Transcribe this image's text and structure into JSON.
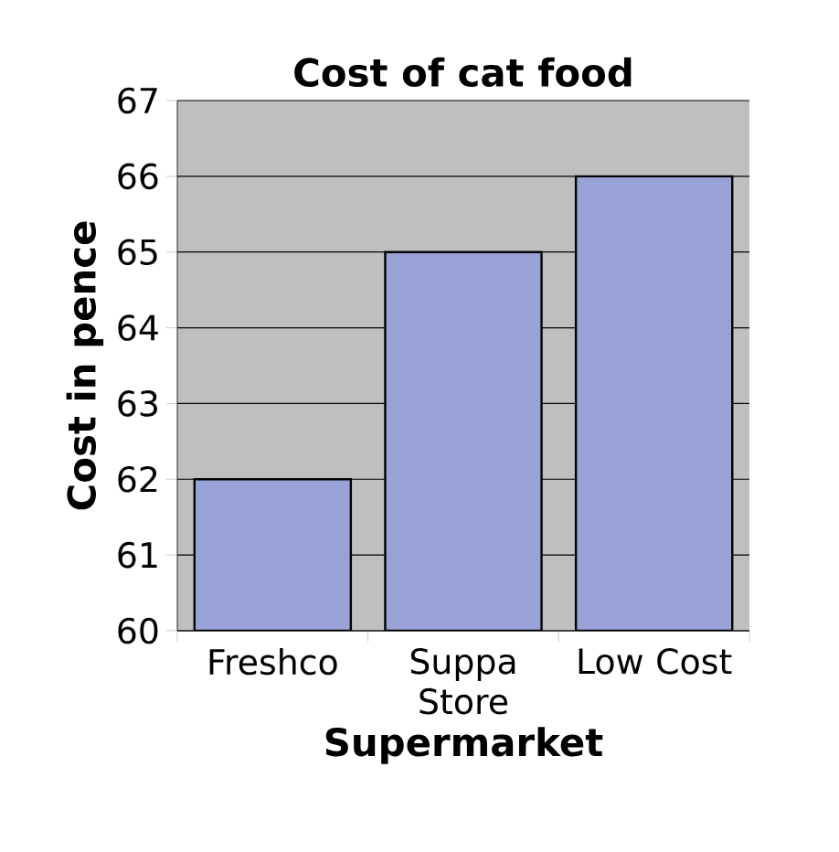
{
  "chart_data": {
    "type": "bar",
    "title": "Cost of cat food",
    "xlabel": "Supermarket",
    "ylabel": "Cost in pence",
    "categories": [
      "Freshco",
      "Suppa Store",
      "Low Cost"
    ],
    "values": [
      62,
      65,
      66
    ],
    "color": "#99a2d6",
    "ylim": [
      60,
      67
    ],
    "yticks": [
      60,
      61,
      62,
      63,
      64,
      65,
      66,
      67
    ],
    "grid": "y"
  }
}
